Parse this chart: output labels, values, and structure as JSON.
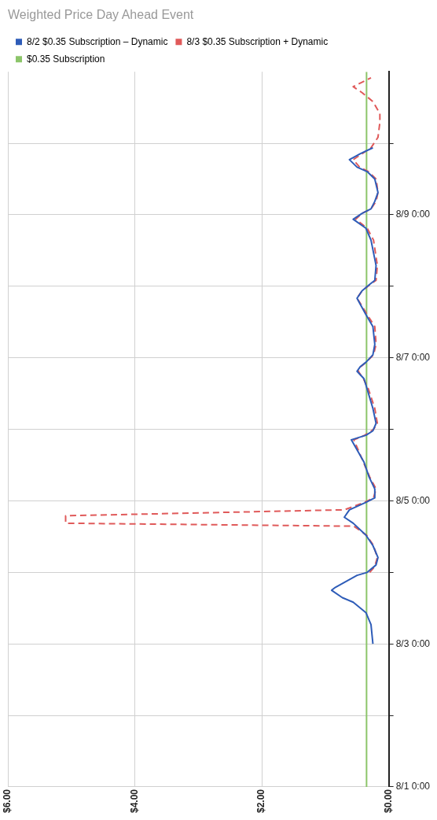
{
  "chart_data": {
    "type": "line",
    "title": "Weighted Price Day Ahead Event",
    "orientation": "horizontal",
    "xlim": [
      6,
      0
    ],
    "xticks": [
      {
        "value": 6,
        "label": "$6.00"
      },
      {
        "value": 4,
        "label": "$4.00"
      },
      {
        "value": 2,
        "label": "$2.00"
      },
      {
        "value": 0,
        "label": "$0.00"
      }
    ],
    "ylim": [
      "--08-01T00:00",
      "--08-11T00:00"
    ],
    "yticks": [
      {
        "value": "--08-01T00:00",
        "label": "8/1 0:00"
      },
      {
        "value": "--08-02T00:00",
        "label": null
      },
      {
        "value": "--08-03T00:00",
        "label": "8/3 0:00"
      },
      {
        "value": "--08-04T00:00",
        "label": null
      },
      {
        "value": "--08-05T00:00",
        "label": "8/5 0:00"
      },
      {
        "value": "--08-06T00:00",
        "label": null
      },
      {
        "value": "--08-07T00:00",
        "label": "8/7 0:00"
      },
      {
        "value": "--08-08T00:00",
        "label": null
      },
      {
        "value": "--08-09T00:00",
        "label": "8/9 0:00"
      },
      {
        "value": "--08-10T00:00",
        "label": null
      }
    ],
    "grid": true,
    "legend": "top left",
    "marker": "none",
    "series": [
      {
        "name": "8/2 $0.35 Subscription – Dynamic",
        "color": "#2e5cb8",
        "line_style": "solid",
        "x": [
          "--08-03T00:00",
          "--08-03T06:30",
          "--08-03T10:30",
          "--08-03T14:00",
          "--08-03T15:30",
          "--08-03T18:00",
          "--08-03T19:00",
          "--08-03T23:00",
          "--08-04T00:00",
          "--08-04T02:30",
          "--08-04T05:00",
          "--08-04T09:00",
          "--08-04T12:30",
          "--08-04T16:30",
          "--08-04T18:30",
          "--08-04T21:00",
          "--08-04T23:30",
          "--08-05T01:00",
          "--08-05T04:00",
          "--08-05T08:00",
          "--08-05T13:00",
          "--08-05T20:30",
          "--08-05T22:00",
          "--08-05T23:30",
          "--08-06T02:00",
          "--08-06T07:00",
          "--08-06T13:30",
          "--08-06T17:00",
          "--08-06T19:30",
          "--08-06T21:00",
          "--08-06T22:30",
          "--08-07T01:00",
          "--08-07T04:30",
          "--08-07T10:30",
          "--08-07T14:30",
          "--08-07T18:00",
          "--08-07T20:00",
          "--08-07T22:30",
          "--08-08T00:30",
          "--08-08T02:00",
          "--08-08T07:00",
          "--08-08T15:30",
          "--08-08T19:30",
          "--08-08T22:30",
          "--08-09T00:30",
          "--08-09T02:00",
          "--08-09T04:30",
          "--08-09T07:30",
          "--08-09T12:00",
          "--08-09T14:30",
          "--08-09T16:00",
          "--08-09T18:30",
          "--08-09T20:30",
          "--08-09T22:30"
        ],
        "values": [
          0.25,
          0.28,
          0.36,
          0.56,
          0.73,
          0.9,
          0.84,
          0.5,
          0.34,
          0.2,
          0.17,
          0.25,
          0.36,
          0.56,
          0.7,
          0.62,
          0.36,
          0.22,
          0.22,
          0.31,
          0.39,
          0.59,
          0.36,
          0.25,
          0.2,
          0.25,
          0.34,
          0.39,
          0.5,
          0.45,
          0.36,
          0.25,
          0.22,
          0.25,
          0.36,
          0.45,
          0.5,
          0.42,
          0.31,
          0.22,
          0.2,
          0.28,
          0.36,
          0.56,
          0.42,
          0.28,
          0.22,
          0.17,
          0.22,
          0.34,
          0.5,
          0.62,
          0.45,
          0.25
        ]
      },
      {
        "name": "8/3 $0.35 Subscription + Dynamic",
        "color": "#e05a5a",
        "line_style": "dashed",
        "x": [
          "--08-04T00:00",
          "--08-04T02:00",
          "--08-04T05:00",
          "--08-04T09:00",
          "--08-04T12:30",
          "--08-04T15:30",
          "--08-04T16:30",
          "--08-04T19:00",
          "--08-04T21:00",
          "--08-04T23:30",
          "--08-05T01:00",
          "--08-05T04:00",
          "--08-05T08:00",
          "--08-05T13:00",
          "--08-05T20:30",
          "--08-05T22:00",
          "--08-06T00:00",
          "--08-06T02:00",
          "--08-06T07:00",
          "--08-06T13:30",
          "--08-06T17:00",
          "--08-06T19:30",
          "--08-06T21:00",
          "--08-06T22:30",
          "--08-07T01:00",
          "--08-07T04:30",
          "--08-07T10:30",
          "--08-07T14:30",
          "--08-07T18:00",
          "--08-07T20:00",
          "--08-07T22:30",
          "--08-08T00:30",
          "--08-08T02:00",
          "--08-08T07:00",
          "--08-08T15:30",
          "--08-08T19:30",
          "--08-08T22:30",
          "--08-09T00:30",
          "--08-09T02:00",
          "--08-09T04:30",
          "--08-09T07:30",
          "--08-09T12:00",
          "--08-09T14:30",
          "--08-09T16:00",
          "--08-09T18:30",
          "--08-09T20:30",
          "--08-09T22:30",
          "--08-10T02:00",
          "--08-10T07:00",
          "--08-10T10:00",
          "--08-10T14:00",
          "--08-10T17:00",
          "--08-10T19:00",
          "--08-10T22:00"
        ],
        "values": [
          0.3,
          0.22,
          0.18,
          0.24,
          0.35,
          0.55,
          5.09,
          5.09,
          0.7,
          0.38,
          0.24,
          0.2,
          0.3,
          0.4,
          0.55,
          0.38,
          0.24,
          0.18,
          0.22,
          0.32,
          0.4,
          0.48,
          0.44,
          0.36,
          0.24,
          0.2,
          0.22,
          0.34,
          0.44,
          0.5,
          0.42,
          0.3,
          0.2,
          0.18,
          0.24,
          0.34,
          0.52,
          0.42,
          0.28,
          0.2,
          0.17,
          0.2,
          0.32,
          0.46,
          0.56,
          0.42,
          0.28,
          0.17,
          0.14,
          0.14,
          0.25,
          0.42,
          0.56,
          0.28
        ]
      },
      {
        "name": "$0.35 Subscription",
        "color": "#8cc56a",
        "line_style": "solid",
        "x": [
          "--08-01T00:00",
          "--08-11T00:00"
        ],
        "values": [
          0.35,
          0.35
        ]
      }
    ]
  }
}
